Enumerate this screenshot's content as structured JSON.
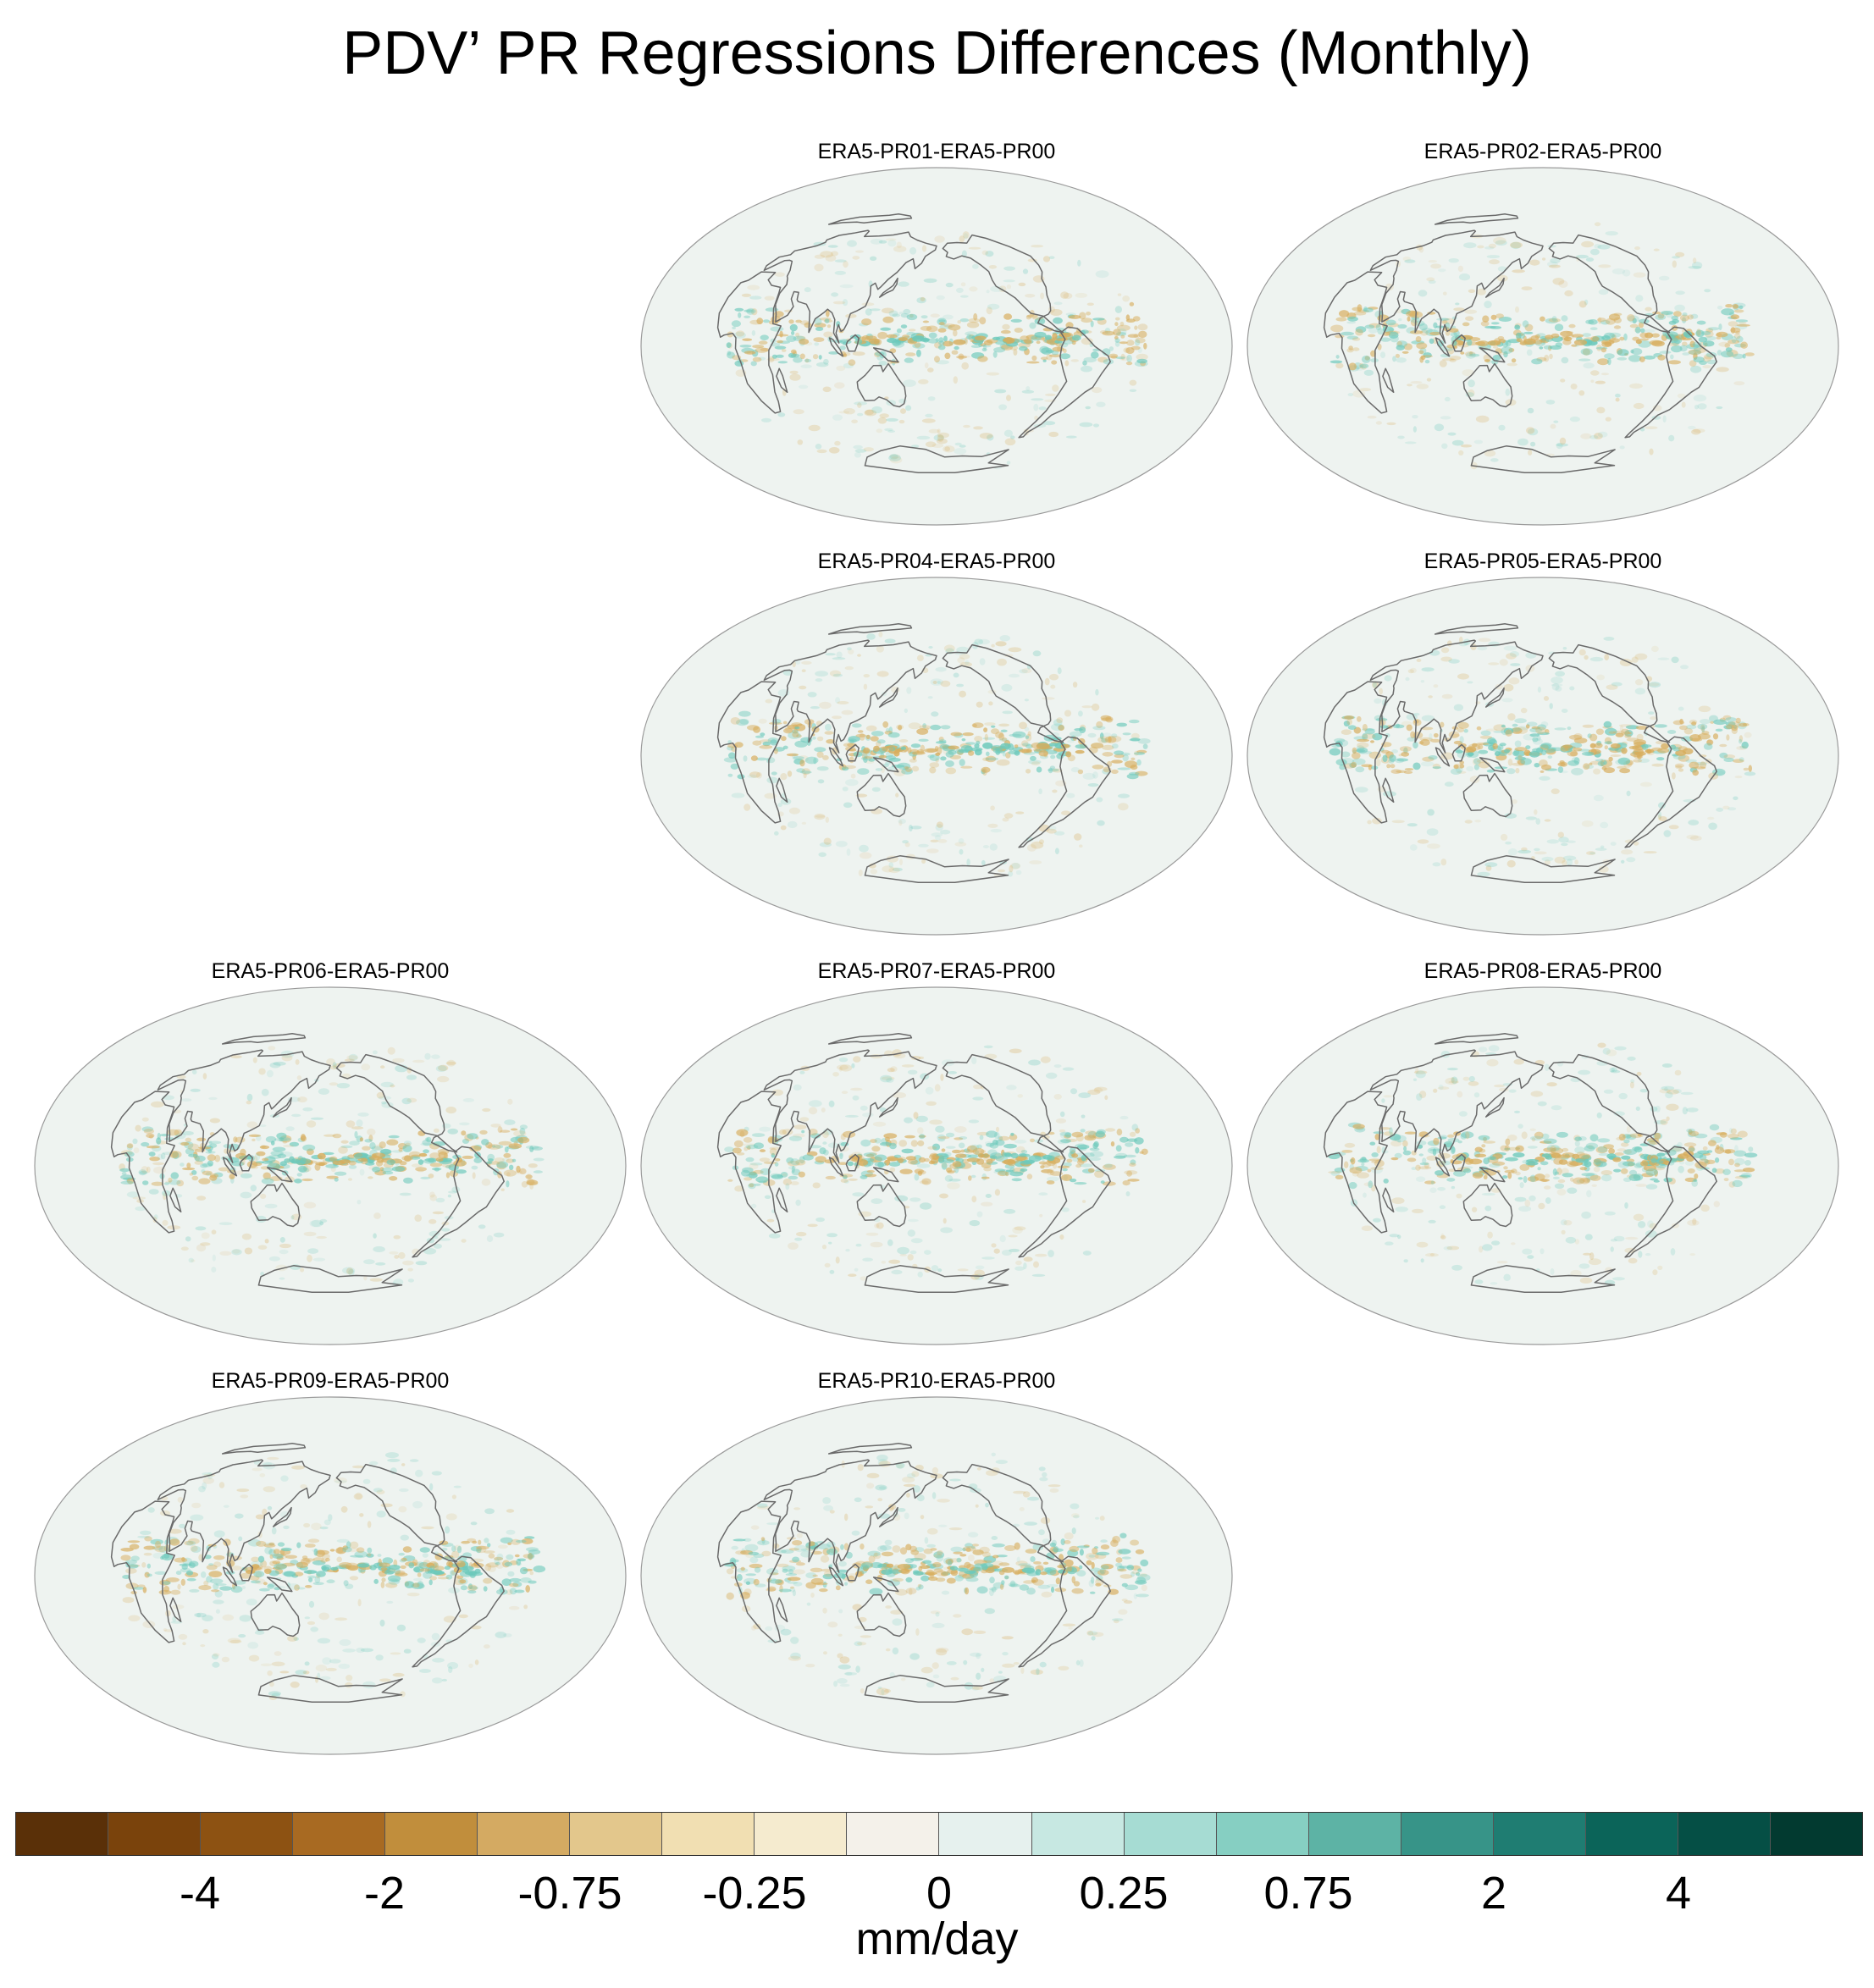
{
  "title": "PDV’ PR Regressions Differences (Monthly)",
  "panels": [
    {
      "label": "ERA5-PR01-ERA5-PR00"
    },
    {
      "label": "ERA5-PR02-ERA5-PR00"
    },
    {
      "label": "ERA5-PR04-ERA5-PR00"
    },
    {
      "label": "ERA5-PR05-ERA5-PR00"
    },
    {
      "label": "ERA5-PR06-ERA5-PR00"
    },
    {
      "label": "ERA5-PR07-ERA5-PR00"
    },
    {
      "label": "ERA5-PR08-ERA5-PR00"
    },
    {
      "label": "ERA5-PR09-ERA5-PR00"
    },
    {
      "label": "ERA5-PR10-ERA5-PR00"
    }
  ],
  "colorbar": {
    "units": "mm/day",
    "tick_labels": [
      "-4",
      "-2",
      "-0.75",
      "-0.25",
      "0",
      "0.25",
      "0.75",
      "2",
      "4"
    ],
    "colors": [
      "#5a3008",
      "#7a430c",
      "#8d5212",
      "#a86a22",
      "#c18e3c",
      "#d4aa62",
      "#e3c78c",
      "#f1dfb2",
      "#f5ebcf",
      "#f4f1ea",
      "#e6f1ee",
      "#c7e8e2",
      "#a6dcd3",
      "#86cfc2",
      "#5db3a5",
      "#379488",
      "#1f7d72",
      "#0b6459",
      "#054f45",
      "#023a30"
    ]
  },
  "map_style": {
    "ocean_color": "#eef3f0",
    "coast_color": "#6a6a6a",
    "positive_color": "#6cc9bb",
    "negative_color": "#d7ad5c"
  }
}
